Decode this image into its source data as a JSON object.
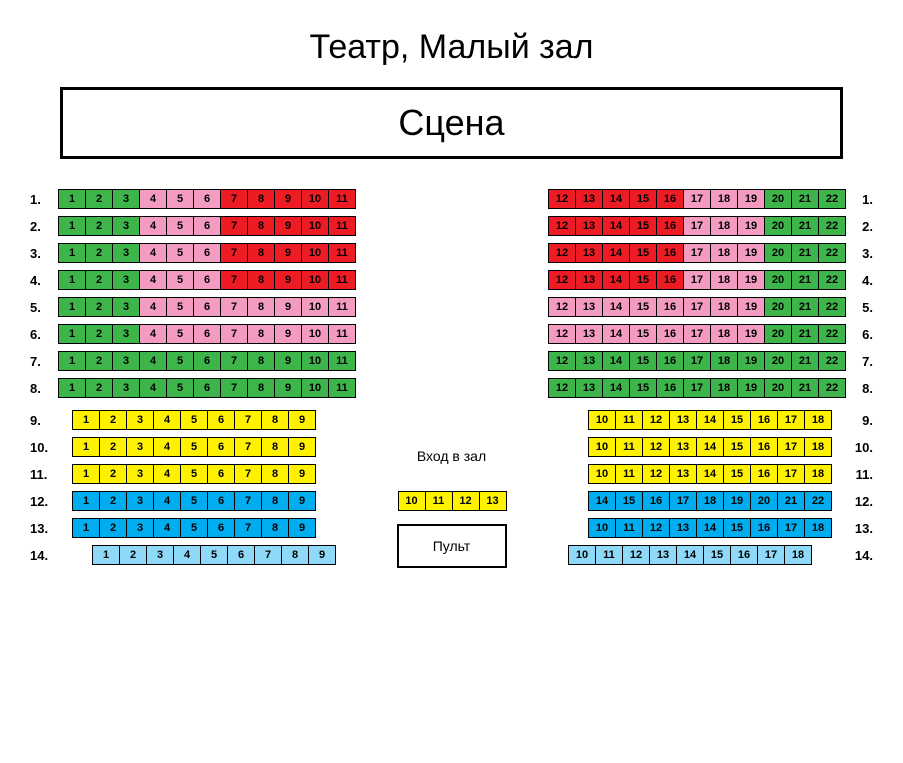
{
  "title": "Театр, Малый зал",
  "stage_label": "Сцена",
  "entry_label": "Вход в зал",
  "booth_label": "Пульт",
  "colors": {
    "green": "#3eb54a",
    "pink": "#f49bc1",
    "red": "#ed1c24",
    "yellow": "#fff200",
    "blue": "#00aeef",
    "lightblue": "#8ed8f8",
    "seat_border": "#000000",
    "seat_text": "#000000",
    "background": "#ffffff"
  },
  "layout": {
    "seat_width": 28,
    "seat_height": 20,
    "row_gap": 7,
    "label_fontsize": 13,
    "seat_fontsize": 11
  },
  "rows": [
    {
      "n": 1,
      "left": {
        "start": 1,
        "colors": [
          "green",
          "green",
          "green",
          "pink",
          "pink",
          "pink",
          "red",
          "red",
          "red",
          "red",
          "red"
        ]
      },
      "right": {
        "start": 12,
        "colors": [
          "red",
          "red",
          "red",
          "red",
          "red",
          "pink",
          "pink",
          "pink",
          "green",
          "green",
          "green"
        ]
      }
    },
    {
      "n": 2,
      "left": {
        "start": 1,
        "colors": [
          "green",
          "green",
          "green",
          "pink",
          "pink",
          "pink",
          "red",
          "red",
          "red",
          "red",
          "red"
        ]
      },
      "right": {
        "start": 12,
        "colors": [
          "red",
          "red",
          "red",
          "red",
          "red",
          "pink",
          "pink",
          "pink",
          "green",
          "green",
          "green"
        ]
      }
    },
    {
      "n": 3,
      "left": {
        "start": 1,
        "colors": [
          "green",
          "green",
          "green",
          "pink",
          "pink",
          "pink",
          "red",
          "red",
          "red",
          "red",
          "red"
        ]
      },
      "right": {
        "start": 12,
        "colors": [
          "red",
          "red",
          "red",
          "red",
          "red",
          "pink",
          "pink",
          "pink",
          "green",
          "green",
          "green"
        ]
      }
    },
    {
      "n": 4,
      "left": {
        "start": 1,
        "colors": [
          "green",
          "green",
          "green",
          "pink",
          "pink",
          "pink",
          "red",
          "red",
          "red",
          "red",
          "red"
        ]
      },
      "right": {
        "start": 12,
        "colors": [
          "red",
          "red",
          "red",
          "red",
          "red",
          "pink",
          "pink",
          "pink",
          "green",
          "green",
          "green"
        ]
      }
    },
    {
      "n": 5,
      "left": {
        "start": 1,
        "colors": [
          "green",
          "green",
          "green",
          "pink",
          "pink",
          "pink",
          "pink",
          "pink",
          "pink",
          "pink",
          "pink"
        ]
      },
      "right": {
        "start": 12,
        "colors": [
          "pink",
          "pink",
          "pink",
          "pink",
          "pink",
          "pink",
          "pink",
          "pink",
          "green",
          "green",
          "green"
        ]
      }
    },
    {
      "n": 6,
      "left": {
        "start": 1,
        "colors": [
          "green",
          "green",
          "green",
          "pink",
          "pink",
          "pink",
          "pink",
          "pink",
          "pink",
          "pink",
          "pink"
        ]
      },
      "right": {
        "start": 12,
        "colors": [
          "pink",
          "pink",
          "pink",
          "pink",
          "pink",
          "pink",
          "pink",
          "pink",
          "green",
          "green",
          "green"
        ]
      }
    },
    {
      "n": 7,
      "left": {
        "start": 1,
        "colors": [
          "green",
          "green",
          "green",
          "green",
          "green",
          "green",
          "green",
          "green",
          "green",
          "green",
          "green"
        ]
      },
      "right": {
        "start": 12,
        "colors": [
          "green",
          "green",
          "green",
          "green",
          "green",
          "green",
          "green",
          "green",
          "green",
          "green",
          "green"
        ]
      }
    },
    {
      "n": 8,
      "left": {
        "start": 1,
        "colors": [
          "green",
          "green",
          "green",
          "green",
          "green",
          "green",
          "green",
          "green",
          "green",
          "green",
          "green"
        ]
      },
      "right": {
        "start": 12,
        "colors": [
          "green",
          "green",
          "green",
          "green",
          "green",
          "green",
          "green",
          "green",
          "green",
          "green",
          "green"
        ]
      }
    },
    {
      "n": 9,
      "indent": 1,
      "left": {
        "start": 1,
        "colors": [
          "yellow",
          "yellow",
          "yellow",
          "yellow",
          "yellow",
          "yellow",
          "yellow",
          "yellow",
          "yellow"
        ]
      },
      "right": {
        "start": 10,
        "colors": [
          "yellow",
          "yellow",
          "yellow",
          "yellow",
          "yellow",
          "yellow",
          "yellow",
          "yellow",
          "yellow"
        ]
      }
    },
    {
      "n": 10,
      "indent": 1,
      "left": {
        "start": 1,
        "colors": [
          "yellow",
          "yellow",
          "yellow",
          "yellow",
          "yellow",
          "yellow",
          "yellow",
          "yellow",
          "yellow"
        ]
      },
      "right": {
        "start": 10,
        "colors": [
          "yellow",
          "yellow",
          "yellow",
          "yellow",
          "yellow",
          "yellow",
          "yellow",
          "yellow",
          "yellow"
        ]
      }
    },
    {
      "n": 11,
      "indent": 1,
      "left": {
        "start": 1,
        "colors": [
          "yellow",
          "yellow",
          "yellow",
          "yellow",
          "yellow",
          "yellow",
          "yellow",
          "yellow",
          "yellow"
        ]
      },
      "right": {
        "start": 10,
        "colors": [
          "yellow",
          "yellow",
          "yellow",
          "yellow",
          "yellow",
          "yellow",
          "yellow",
          "yellow",
          "yellow"
        ]
      }
    },
    {
      "n": 12,
      "indent": 1,
      "left": {
        "start": 1,
        "colors": [
          "blue",
          "blue",
          "blue",
          "blue",
          "blue",
          "blue",
          "blue",
          "blue",
          "blue"
        ]
      },
      "mid": {
        "start": 10,
        "colors": [
          "yellow",
          "yellow",
          "yellow",
          "yellow"
        ]
      },
      "right": {
        "start": 14,
        "colors": [
          "blue",
          "blue",
          "blue",
          "blue",
          "blue",
          "blue",
          "blue",
          "blue",
          "blue"
        ]
      }
    },
    {
      "n": 13,
      "indent": 1,
      "left": {
        "start": 1,
        "colors": [
          "blue",
          "blue",
          "blue",
          "blue",
          "blue",
          "blue",
          "blue",
          "blue",
          "blue"
        ]
      },
      "right": {
        "start": 10,
        "colors": [
          "blue",
          "blue",
          "blue",
          "blue",
          "blue",
          "blue",
          "blue",
          "blue",
          "blue"
        ]
      }
    },
    {
      "n": 14,
      "indent": 2,
      "left": {
        "start": 1,
        "colors": [
          "lightblue",
          "lightblue",
          "lightblue",
          "lightblue",
          "lightblue",
          "lightblue",
          "lightblue",
          "lightblue",
          "lightblue"
        ]
      },
      "right": {
        "start": 10,
        "colors": [
          "lightblue",
          "lightblue",
          "lightblue",
          "lightblue",
          "lightblue",
          "lightblue",
          "lightblue",
          "lightblue",
          "lightblue"
        ]
      }
    }
  ]
}
